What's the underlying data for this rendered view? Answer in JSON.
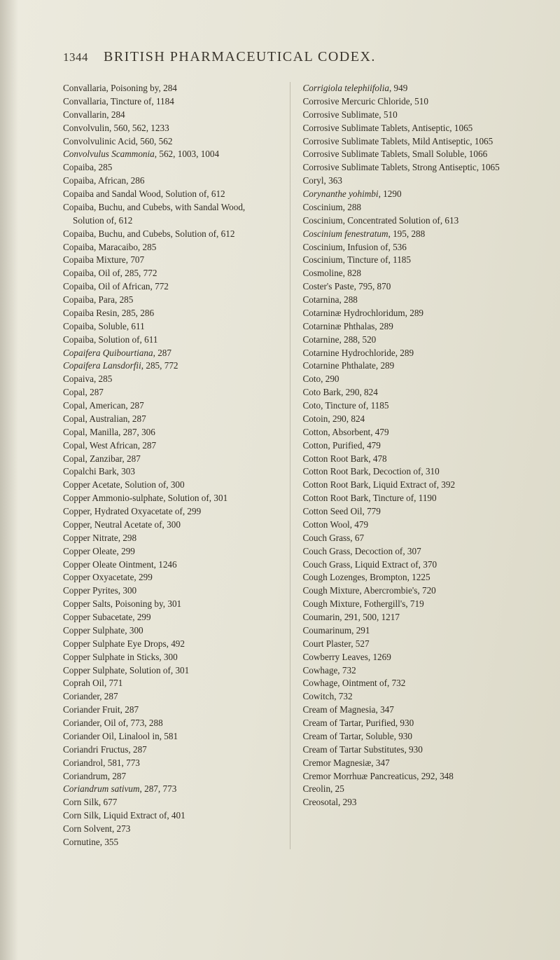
{
  "header": {
    "page_number": "1344",
    "running_title": "BRITISH PHARMACEUTICAL CODEX."
  },
  "left_column": [
    {
      "t": "Convallaria, Poisoning by, 284"
    },
    {
      "t": "Convallaria, Tincture of, 1184"
    },
    {
      "t": "Convallarin, 284"
    },
    {
      "t": "Convolvulin, 560, 562, 1233"
    },
    {
      "t": "Convolvulinic Acid, 560, 562"
    },
    {
      "html": "<span class='ital'>Convolvulus Scammonia</span>, 562, 1003, 1004"
    },
    {
      "t": "Copaiba, 285"
    },
    {
      "t": "Copaiba, African, 286"
    },
    {
      "t": "Copaiba and Sandal Wood, Solution of, 612"
    },
    {
      "t": "Copaiba, Buchu, and Cubebs, with Sandal Wood, Solution of, 612"
    },
    {
      "t": "Copaiba, Buchu, and Cubebs, Solution of, 612"
    },
    {
      "t": "Copaiba, Maracaibo, 285"
    },
    {
      "t": "Copaiba Mixture, 707"
    },
    {
      "t": "Copaiba, Oil of, 285, 772"
    },
    {
      "t": "Copaiba, Oil of African, 772"
    },
    {
      "t": "Copaiba, Para, 285"
    },
    {
      "t": "Copaiba Resin, 285, 286"
    },
    {
      "t": "Copaiba, Soluble, 611"
    },
    {
      "t": "Copaiba, Solution of, 611"
    },
    {
      "html": "<span class='ital'>Copaifera Quibourtiana</span>, 287"
    },
    {
      "html": "<span class='ital'>Copaifera Lansdorfii</span>, 285, 772"
    },
    {
      "t": "Copaiva, 285"
    },
    {
      "t": "Copal, 287"
    },
    {
      "t": "Copal, American, 287"
    },
    {
      "t": "Copal, Australian, 287"
    },
    {
      "t": "Copal, Manilla, 287, 306"
    },
    {
      "t": "Copal, West African, 287"
    },
    {
      "t": "Copal, Zanzibar, 287"
    },
    {
      "t": "Copalchi Bark, 303"
    },
    {
      "t": "Copper Acetate, Solution of, 300"
    },
    {
      "t": "Copper Ammonio-sulphate, Solution of, 301"
    },
    {
      "t": "Copper, Hydrated Oxyacetate of, 299"
    },
    {
      "t": "Copper, Neutral Acetate of, 300"
    },
    {
      "t": "Copper Nitrate, 298"
    },
    {
      "t": "Copper Oleate, 299"
    },
    {
      "t": "Copper Oleate Ointment, 1246"
    },
    {
      "t": "Copper Oxyacetate, 299"
    },
    {
      "t": "Copper Pyrites, 300"
    },
    {
      "t": "Copper Salts, Poisoning by, 301"
    },
    {
      "t": "Copper Subacetate, 299"
    },
    {
      "t": "Copper Sulphate, 300"
    },
    {
      "t": "Copper Sulphate Eye Drops, 492"
    },
    {
      "t": "Copper Sulphate in Sticks, 300"
    },
    {
      "t": "Copper Sulphate, Solution of, 301"
    },
    {
      "t": "Coprah Oil, 771"
    },
    {
      "t": "Coriander, 287"
    },
    {
      "t": "Coriander Fruit, 287"
    },
    {
      "t": "Coriander, Oil of, 773, 288"
    },
    {
      "t": "Coriander Oil, Linalool in, 581"
    },
    {
      "t": "Coriandri Fructus, 287"
    },
    {
      "t": "Coriandrol, 581, 773"
    },
    {
      "t": "Coriandrum, 287"
    },
    {
      "html": "<span class='ital'>Coriandrum sativum</span>, 287, 773"
    },
    {
      "t": "Corn Silk, 677"
    },
    {
      "t": "Corn Silk, Liquid Extract of, 401"
    },
    {
      "t": "Corn Solvent, 273"
    },
    {
      "t": "Cornutine, 355"
    }
  ],
  "right_column": [
    {
      "html": "<span class='ital'>Corrigiola telephiifolia</span>, 949"
    },
    {
      "t": "Corrosive Mercuric Chloride, 510"
    },
    {
      "t": "Corrosive Sublimate, 510"
    },
    {
      "t": "Corrosive Sublimate Tablets, Antiseptic, 1065"
    },
    {
      "t": "Corrosive Sublimate Tablets, Mild Antiseptic, 1065"
    },
    {
      "t": "Corrosive Sublimate Tablets, Small Soluble, 1066"
    },
    {
      "t": "Corrosive Sublimate Tablets, Strong Antiseptic, 1065"
    },
    {
      "t": "Coryl, 363"
    },
    {
      "html": "<span class='ital'>Corynanthe yohimbi</span>, 1290"
    },
    {
      "t": "Coscinium, 288"
    },
    {
      "t": "Coscinium, Concentrated Solution of, 613"
    },
    {
      "html": "<span class='ital'>Coscinium fenestratum</span>, 195, 288"
    },
    {
      "t": "Coscinium, Infusion of, 536"
    },
    {
      "t": "Coscinium, Tincture of, 1185"
    },
    {
      "t": "Cosmoline, 828"
    },
    {
      "t": "Coster's Paste, 795, 870"
    },
    {
      "t": "Cotarnina, 288"
    },
    {
      "t": "Cotarninæ Hydrochloridum, 289"
    },
    {
      "t": "Cotarninæ Phthalas, 289"
    },
    {
      "t": "Cotarnine, 288, 520"
    },
    {
      "t": "Cotarnine Hydrochloride, 289"
    },
    {
      "t": "Cotarnine Phthalate, 289"
    },
    {
      "t": "Coto, 290"
    },
    {
      "t": "Coto Bark, 290, 824"
    },
    {
      "t": "Coto, Tincture of, 1185"
    },
    {
      "t": "Cotoin, 290, 824"
    },
    {
      "t": "Cotton, Absorbent, 479"
    },
    {
      "t": "Cotton, Purified, 479"
    },
    {
      "t": "Cotton Root Bark, 478"
    },
    {
      "t": "Cotton Root Bark, Decoction of, 310"
    },
    {
      "t": "Cotton Root Bark, Liquid Extract of, 392"
    },
    {
      "t": "Cotton Root Bark, Tincture of, 1190"
    },
    {
      "t": "Cotton Seed Oil, 779"
    },
    {
      "t": "Cotton Wool, 479"
    },
    {
      "t": "Couch Grass, 67"
    },
    {
      "t": "Couch Grass, Decoction of, 307"
    },
    {
      "t": "Couch Grass, Liquid Extract of, 370"
    },
    {
      "t": "Cough Lozenges, Brompton, 1225"
    },
    {
      "t": "Cough Mixture, Abercrombie's, 720"
    },
    {
      "t": "Cough Mixture, Fothergill's, 719"
    },
    {
      "t": "Coumarin, 291, 500, 1217"
    },
    {
      "t": "Coumarinum, 291"
    },
    {
      "t": "Court Plaster, 527"
    },
    {
      "t": "Cowberry Leaves, 1269"
    },
    {
      "t": "Cowhage, 732"
    },
    {
      "t": "Cowhage, Ointment of, 732"
    },
    {
      "t": "Cowitch, 732"
    },
    {
      "t": "Cream of Magnesia, 347"
    },
    {
      "t": "Cream of Tartar, Purified, 930"
    },
    {
      "t": "Cream of Tartar, Soluble, 930"
    },
    {
      "t": "Cream of Tartar Substitutes, 930"
    },
    {
      "t": "Cremor Magnesiæ, 347"
    },
    {
      "t": "Cremor Morrhuæ Pancreaticus, 292, 348"
    },
    {
      "t": "Creolin, 25"
    },
    {
      "t": "Creosotal, 293"
    }
  ]
}
